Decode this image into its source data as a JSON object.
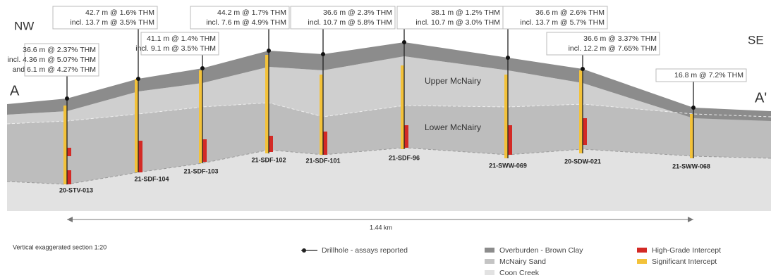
{
  "directions": {
    "left": "NW",
    "right": "SE"
  },
  "section": {
    "start": "A",
    "end": "A'"
  },
  "layers": {
    "upper": "Upper McNairy",
    "lower": "Lower McNairy"
  },
  "drillholes": [
    {
      "name": "20-STV-013",
      "lines": [
        "36.6 m @ 2.37% THM",
        "incl. 4.36 m @ 5.07% THM",
        "and 6.1 m @ 4.27% THM"
      ]
    },
    {
      "name": "21-SDF-104",
      "lines": [
        "42.7 m @ 1.6% THM",
        "incl. 13.7 m @ 3.5% THM"
      ]
    },
    {
      "name": "21-SDF-103",
      "lines": [
        "41.1 m @ 1.4% THM",
        "incl. 9.1 m @ 3.5% THM"
      ]
    },
    {
      "name": "21-SDF-102",
      "lines": [
        "44.2 m @ 1.7% THM",
        "incl. 7.6 m @ 4.9% THM"
      ]
    },
    {
      "name": "21-SDF-101",
      "lines": [
        "36.6 m @ 2.3% THM",
        "incl. 10.7 m @ 5.8% THM"
      ]
    },
    {
      "name": "21-SDF-96",
      "lines": [
        "38.1 m @ 1.2% THM",
        "incl. 10.7 m @ 3.0% THM"
      ]
    },
    {
      "name": "21-SWW-069",
      "lines": [
        "36.6 m @ 2.6% THM",
        "incl. 13.7 m @ 5.7% THM"
      ]
    },
    {
      "name": "20-SDW-021",
      "lines": [
        "36.6 m @ 3.37% THM",
        "incl. 12.2 m @ 7.65% THM"
      ]
    },
    {
      "name": "21-SWW-068",
      "lines": [
        "16.8 m @ 7.2% THM"
      ]
    }
  ],
  "scale": "1.44 km",
  "note": "Vertical exaggerated section 1:20",
  "legend": {
    "drillhole": "Drillhole - assays reported",
    "overburden": "Overburden - Brown Clay",
    "sand": "McNairy Sand",
    "coon": "Coon Creek",
    "high": "High-Grade Intercept",
    "significant": "Significant Intercept"
  }
}
